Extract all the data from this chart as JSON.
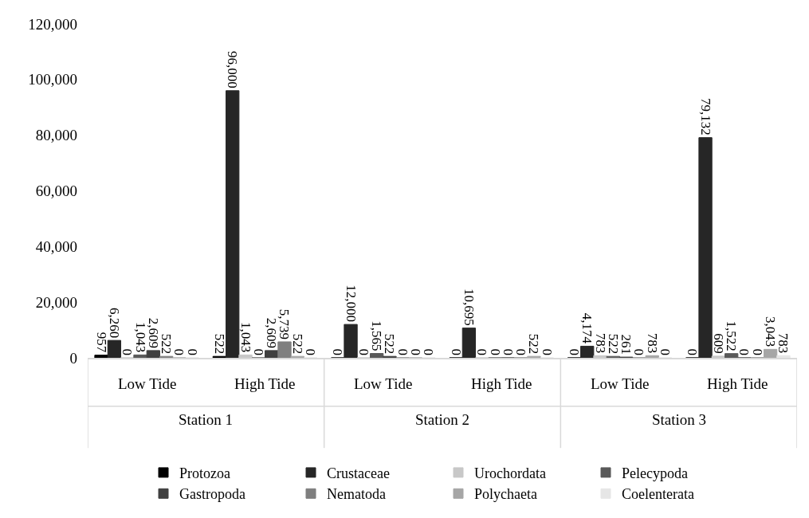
{
  "chart_data": {
    "type": "bar",
    "categories": [
      "Low Tide",
      "High Tide",
      "Low Tide",
      "High Tide",
      "Low Tide",
      "High Tide"
    ],
    "annotations": [
      "Station 1",
      "Station 2",
      "Station 3"
    ],
    "series": [
      {
        "name": "Protozoa",
        "color": "#000000",
        "values": [
          957,
          522,
          0,
          0,
          0,
          0
        ],
        "value_labels": [
          "957",
          "522",
          "0",
          "0",
          "0",
          "0"
        ]
      },
      {
        "name": "Crustaceae",
        "color": "#262626",
        "values": [
          6260,
          96000,
          12000,
          10695,
          4174,
          79132
        ],
        "value_labels": [
          "6,260",
          "96,000",
          "12,000",
          "10,695",
          "4,174",
          "79,132"
        ]
      },
      {
        "name": "Urochordata",
        "color": "#c8c8c8",
        "values": [
          0,
          1043,
          0,
          0,
          783,
          609
        ],
        "value_labels": [
          "0",
          "1,043",
          "0",
          "0",
          "783",
          "609"
        ]
      },
      {
        "name": "Pelecypoda",
        "color": "#595959",
        "values": [
          1043,
          0,
          1565,
          0,
          522,
          1522
        ],
        "value_labels": [
          "1,043",
          "0",
          "1,565",
          "0",
          "522",
          "1,522"
        ]
      },
      {
        "name": "Gastropoda",
        "color": "#404040",
        "values": [
          2609,
          2609,
          522,
          0,
          261,
          0
        ],
        "value_labels": [
          "2,609",
          "2,609",
          "522",
          "0",
          "261",
          "0"
        ]
      },
      {
        "name": "Nematoda",
        "color": "#7f7f7f",
        "values": [
          522,
          5739,
          0,
          0,
          0,
          0
        ],
        "value_labels": [
          "522",
          "5,739",
          "0",
          "0",
          "0",
          "0"
        ]
      },
      {
        "name": "Polychaeta",
        "color": "#a6a6a6",
        "values": [
          0,
          522,
          0,
          522,
          783,
          3043
        ],
        "value_labels": [
          "0",
          "522",
          "0",
          "522",
          "783",
          "3,043"
        ]
      },
      {
        "name": "Coelenterata",
        "color": "#e6e6e6",
        "values": [
          0,
          0,
          0,
          0,
          0,
          783
        ],
        "value_labels": [
          "0",
          "0",
          "0",
          "0",
          "0",
          "783"
        ]
      }
    ],
    "ylim": [
      0,
      120000
    ],
    "yticks": [
      {
        "value": 0,
        "label": "0"
      },
      {
        "value": 20000,
        "label": "20,000"
      },
      {
        "value": 40000,
        "label": "40,000"
      },
      {
        "value": 60000,
        "label": "60,000"
      },
      {
        "value": 80000,
        "label": "80,000"
      },
      {
        "value": 100000,
        "label": "100,000"
      },
      {
        "value": 120000,
        "label": "120,000"
      }
    ],
    "grid": false,
    "legend": "bottom"
  }
}
